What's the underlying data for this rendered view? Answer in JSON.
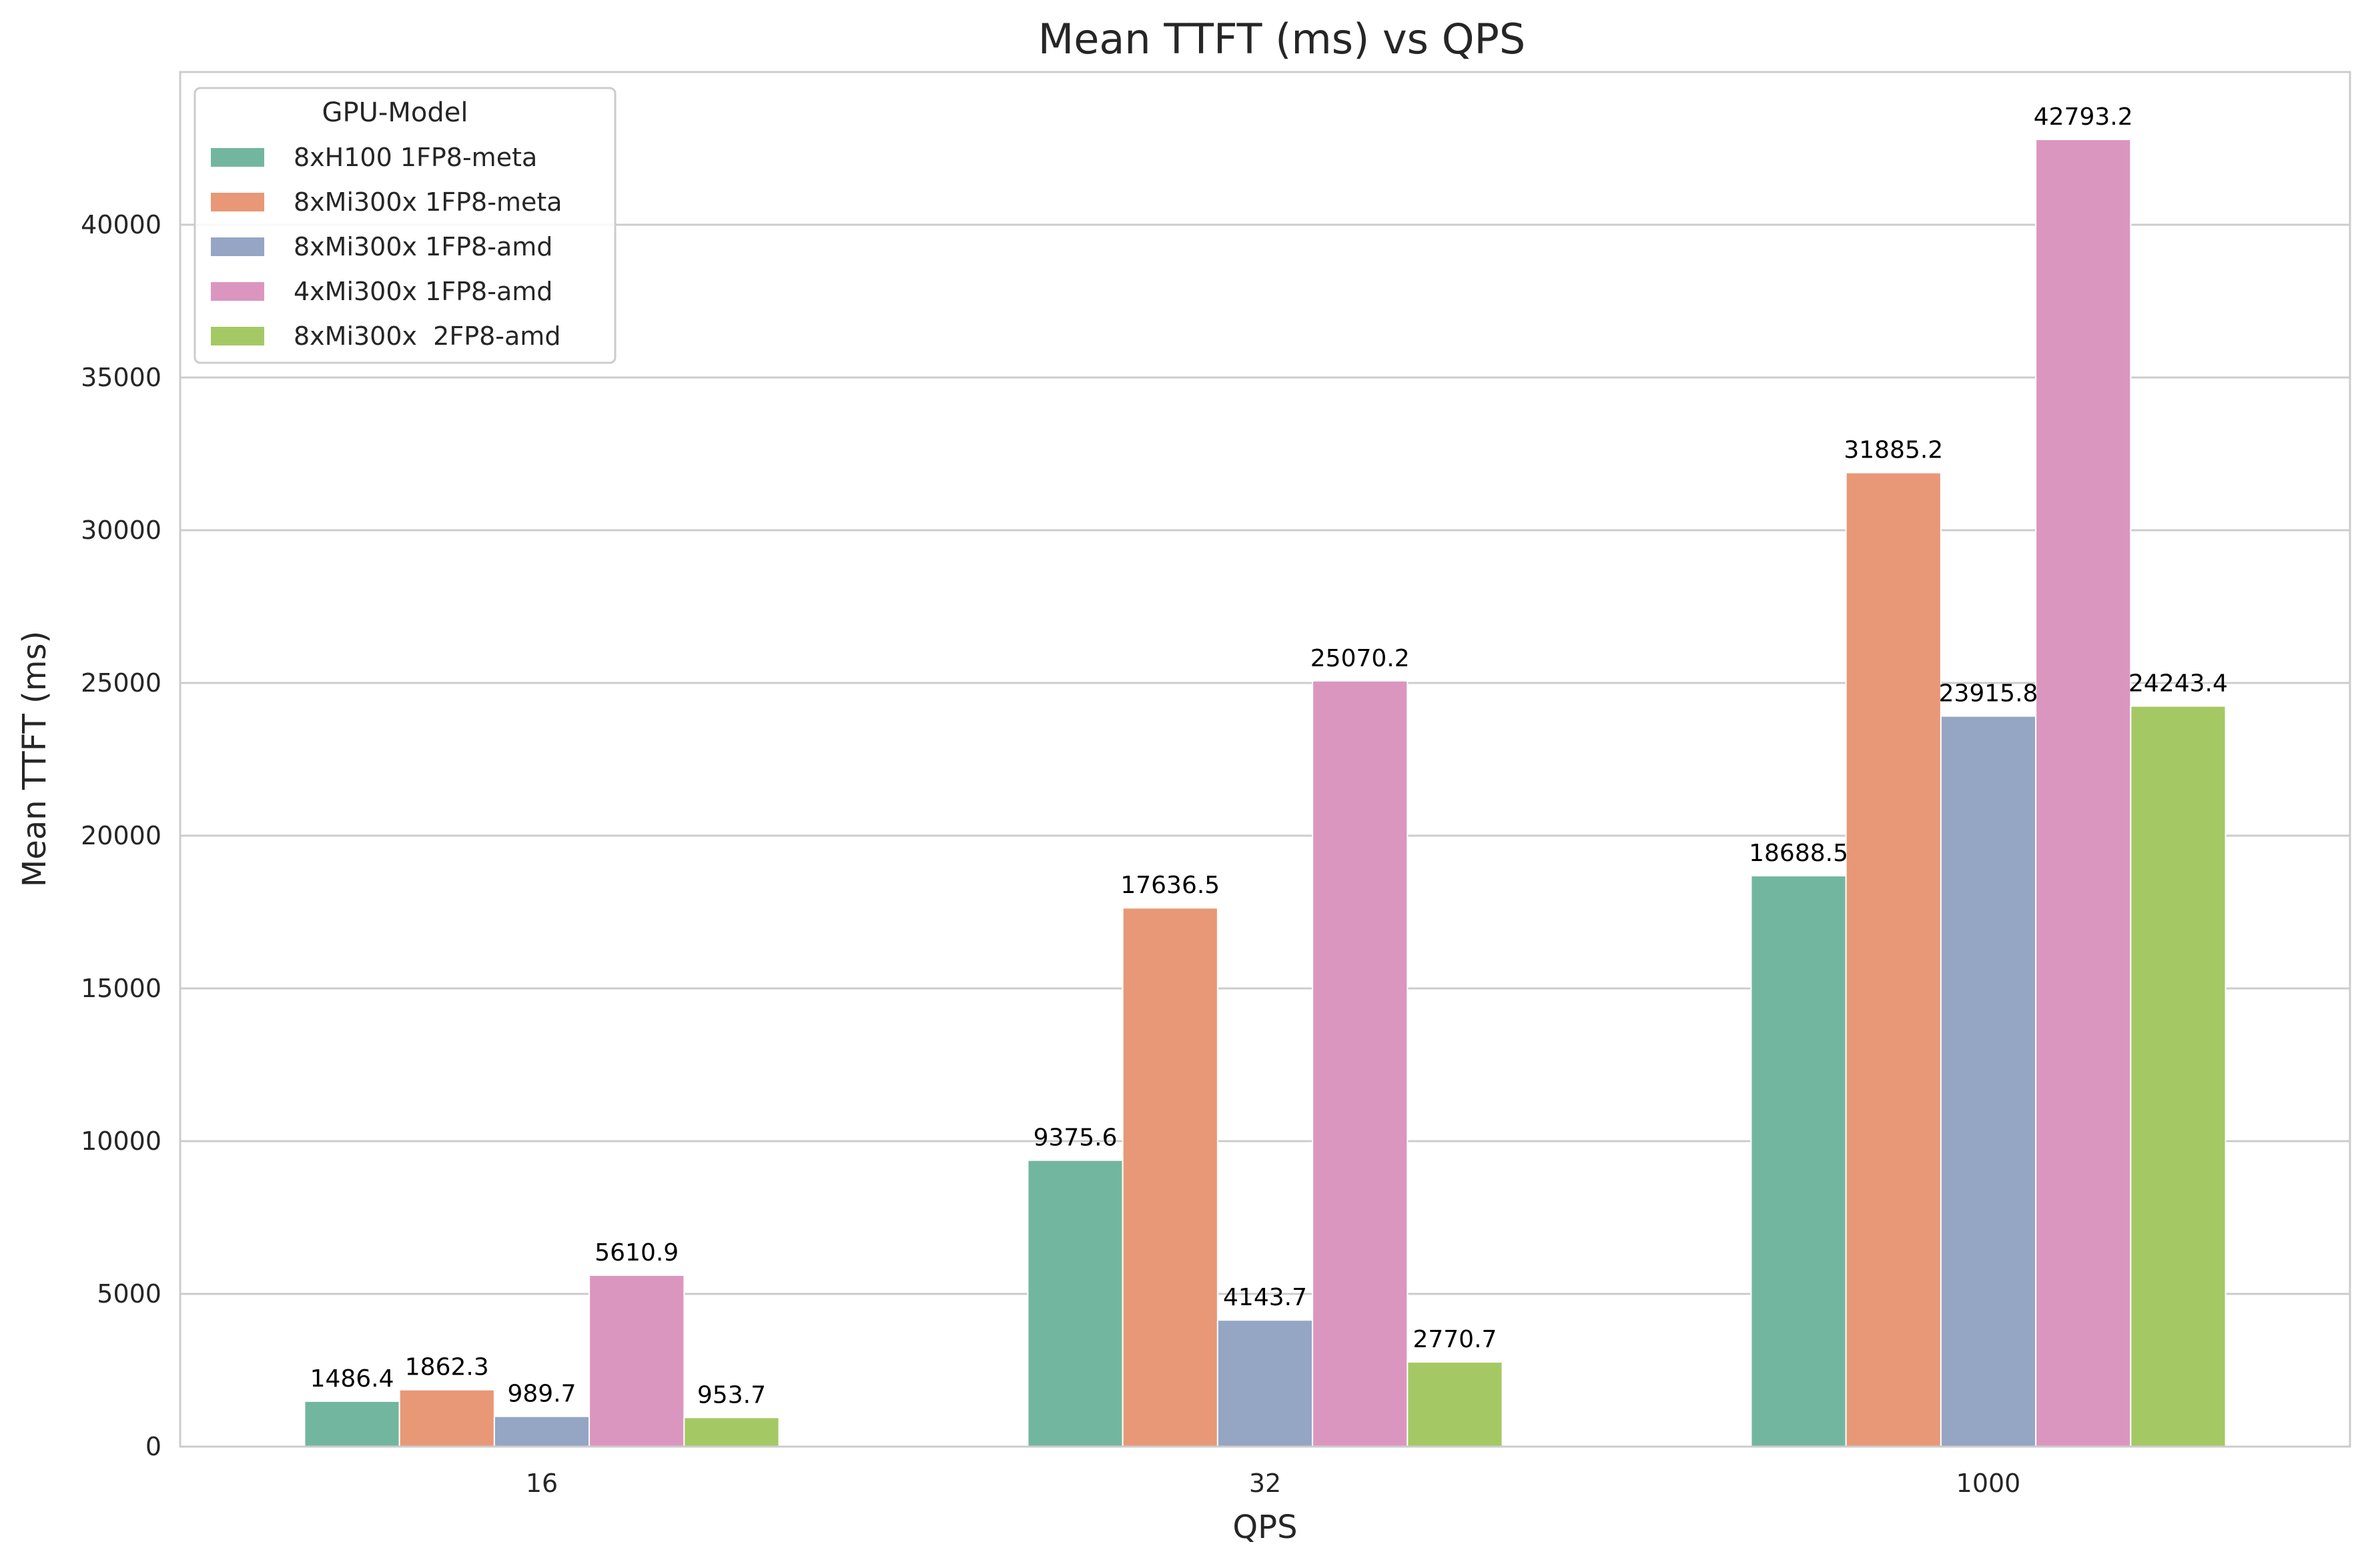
{
  "chart_data": {
    "type": "bar",
    "title": "Mean TTFT (ms) vs QPS",
    "xlabel": "QPS",
    "ylabel": "Mean TTFT (ms)",
    "categories": [
      "16",
      "32",
      "1000"
    ],
    "ylim": [
      0,
      45000
    ],
    "yticks": [
      0,
      5000,
      10000,
      15000,
      20000,
      25000,
      30000,
      35000,
      40000
    ],
    "grid": true,
    "legend_title": "GPU-Model",
    "legend_position": "top-left",
    "series": [
      {
        "name": "8xH100 1FP8-meta",
        "color": "#73b6a0",
        "values": [
          1486.4,
          9375.6,
          18688.5
        ],
        "labels": [
          "1486.4",
          "9375.6",
          "18688.5"
        ]
      },
      {
        "name": "8xMi300x 1FP8-meta",
        "color": "#e89876",
        "values": [
          1862.3,
          17636.5,
          31885.2
        ],
        "labels": [
          "1862.3",
          "17636.5",
          "31885.2"
        ]
      },
      {
        "name": "8xMi300x 1FP8-amd",
        "color": "#95a5c4",
        "values": [
          989.7,
          4143.7,
          23915.8
        ],
        "labels": [
          "989.7",
          "4143.7",
          "23915.8"
        ]
      },
      {
        "name": "4xMi300x 1FP8-amd",
        "color": "#db96c0",
        "values": [
          5610.9,
          25070.2,
          42793.2
        ],
        "labels": [
          "5610.9",
          "25070.2",
          "42793.2"
        ]
      },
      {
        "name": "8xMi300x  2FP8-amd",
        "color": "#a4c964",
        "values": [
          953.7,
          2770.7,
          24243.4
        ],
        "labels": [
          "953.7",
          "2770.7",
          "24243.4"
        ]
      }
    ]
  }
}
